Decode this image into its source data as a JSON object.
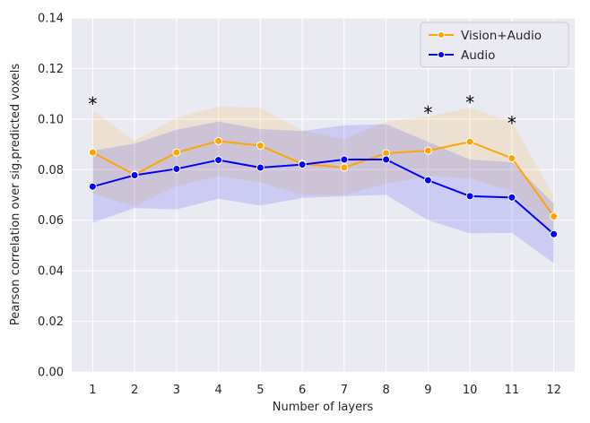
{
  "chart_data": {
    "type": "line",
    "xlabel": "Number of layers",
    "ylabel": "Pearson correlation over sig.predicted voxels",
    "x": [
      1,
      2,
      3,
      4,
      5,
      6,
      7,
      8,
      9,
      10,
      11,
      12
    ],
    "x_tick_labels": [
      "1",
      "2",
      "3",
      "4",
      "5",
      "6",
      "7",
      "8",
      "9",
      "10",
      "11",
      "12"
    ],
    "ylim": [
      0.0,
      0.14
    ],
    "y_ticks": [
      0.0,
      0.02,
      0.04,
      0.06,
      0.08,
      0.1,
      0.12,
      0.14
    ],
    "y_tick_labels": [
      "0.00",
      "0.02",
      "0.04",
      "0.06",
      "0.08",
      "0.10",
      "0.12",
      "0.14"
    ],
    "grid": true,
    "legend_position": "top-right",
    "background_color": "#eaeaf2",
    "series": [
      {
        "name": "Vision+Audio",
        "color": "#ffa500",
        "values": [
          0.0868,
          0.078,
          0.0868,
          0.0913,
          0.0895,
          0.0823,
          0.0808,
          0.0865,
          0.0875,
          0.091,
          0.0845,
          0.0615
        ],
        "ci_lower": [
          0.0705,
          0.0655,
          0.0735,
          0.0775,
          0.075,
          0.07,
          0.07,
          0.0745,
          0.0775,
          0.0765,
          0.0715,
          0.054
        ],
        "ci_upper": [
          0.1035,
          0.0915,
          0.1005,
          0.105,
          0.1045,
          0.0955,
          0.092,
          0.099,
          0.101,
          0.1045,
          0.099,
          0.0695
        ]
      },
      {
        "name": "Audio",
        "color": "#0000ff",
        "values": [
          0.0733,
          0.0778,
          0.0803,
          0.0838,
          0.0808,
          0.082,
          0.084,
          0.084,
          0.0758,
          0.0695,
          0.069,
          0.0545
        ],
        "ci_lower": [
          0.059,
          0.0648,
          0.0643,
          0.0685,
          0.0658,
          0.0688,
          0.0695,
          0.07,
          0.06,
          0.0548,
          0.055,
          0.043
        ],
        "ci_upper": [
          0.0875,
          0.0903,
          0.0958,
          0.099,
          0.096,
          0.0953,
          0.0975,
          0.098,
          0.091,
          0.084,
          0.083,
          0.0665
        ]
      }
    ],
    "annotations": [
      {
        "x": 1,
        "y": 0.107,
        "text": "*"
      },
      {
        "x": 9,
        "y": 0.1035,
        "text": "*"
      },
      {
        "x": 10,
        "y": 0.1075,
        "text": "*"
      },
      {
        "x": 11,
        "y": 0.0995,
        "text": "*"
      }
    ]
  }
}
